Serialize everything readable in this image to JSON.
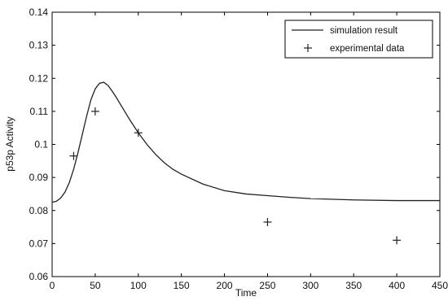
{
  "chart_data": {
    "type": "line",
    "title": "",
    "xlabel": "Time",
    "ylabel": "p53p Activity",
    "xlim": [
      0,
      450
    ],
    "ylim": [
      0.06,
      0.14
    ],
    "grid": false,
    "legend_position": "top-right",
    "x_ticks": [
      0,
      50,
      100,
      150,
      200,
      250,
      300,
      350,
      400,
      450
    ],
    "x_tick_labels": [
      "0",
      "50",
      "100",
      "150",
      "200",
      "250",
      "300",
      "350",
      "400",
      "450"
    ],
    "y_ticks": [
      0.06,
      0.07,
      0.08,
      0.09,
      0.1,
      0.11,
      0.12,
      0.13,
      0.14
    ],
    "y_tick_labels": [
      "0.06",
      "0.07",
      "0.08",
      "0.09",
      "0.1",
      "0.11",
      "0.12",
      "0.13",
      "0.14"
    ],
    "series": [
      {
        "name": "simulation result",
        "style": "line",
        "color": "#222222",
        "x": [
          0,
          5,
          10,
          15,
          20,
          25,
          30,
          35,
          40,
          45,
          50,
          55,
          60,
          65,
          70,
          75,
          80,
          90,
          100,
          110,
          120,
          130,
          140,
          150,
          175,
          200,
          225,
          250,
          275,
          300,
          350,
          400,
          450
        ],
        "y": [
          0.0825,
          0.0828,
          0.0838,
          0.0856,
          0.0885,
          0.0925,
          0.0975,
          0.103,
          0.1085,
          0.1135,
          0.1168,
          0.1185,
          0.1188,
          0.1178,
          0.116,
          0.114,
          0.1118,
          0.1075,
          0.1035,
          0.1,
          0.097,
          0.0945,
          0.0925,
          0.091,
          0.088,
          0.086,
          0.085,
          0.0845,
          0.084,
          0.0836,
          0.0832,
          0.083,
          0.083
        ]
      },
      {
        "name": "experimental data",
        "style": "marker",
        "marker": "+",
        "color": "#222222",
        "x": [
          25,
          50,
          100,
          250,
          400
        ],
        "y": [
          0.0965,
          0.11,
          0.1035,
          0.0765,
          0.071
        ]
      }
    ]
  }
}
